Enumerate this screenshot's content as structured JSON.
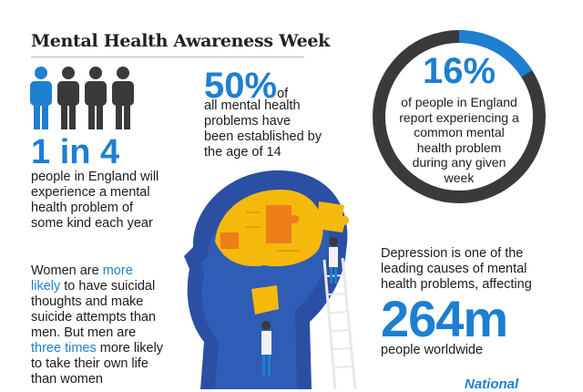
{
  "title": "Mental Health Awareness Week",
  "stat1": {
    "big": "1 in 4",
    "text": [
      "people in England will",
      "experience a mental",
      "health problem of",
      "some kind each year"
    ],
    "icons": [
      "person-icon-highlight",
      "person-icon",
      "person-icon",
      "person-icon"
    ]
  },
  "stat2": {
    "big": "50%",
    "suffix": "of",
    "text": [
      "all mental health",
      "problems have",
      "been established by",
      "the age of 14"
    ]
  },
  "stat3": {
    "big": "16%",
    "text": [
      "of people in England",
      "report experiencing a",
      "common mental",
      "health problem",
      "during any given",
      "week"
    ],
    "ring_fraction": 0.16
  },
  "stat4": {
    "text": [
      "Depression is one of the",
      "leading causes of mental",
      "health problems, affecting"
    ],
    "big": "264m",
    "after": "people worldwide"
  },
  "stat5": {
    "l1_a": "Women are ",
    "l1_b": "more",
    "l2_a": "likely",
    "l2_b": " to have suicidal",
    "l3": "thoughts and make",
    "l4": "suicide attempts than",
    "l5": "men. But men are",
    "l6_a": "three times",
    "l6_b": " more likely",
    "l7": "to take their own life",
    "l8": "than women"
  },
  "logo": "National",
  "colors": {
    "accent": "#1e7fd0",
    "dark": "#3a3a3a",
    "head": "#2b4fa3",
    "puzzle": "#f5b90b",
    "puzzle_orange": "#ef7d1a"
  }
}
